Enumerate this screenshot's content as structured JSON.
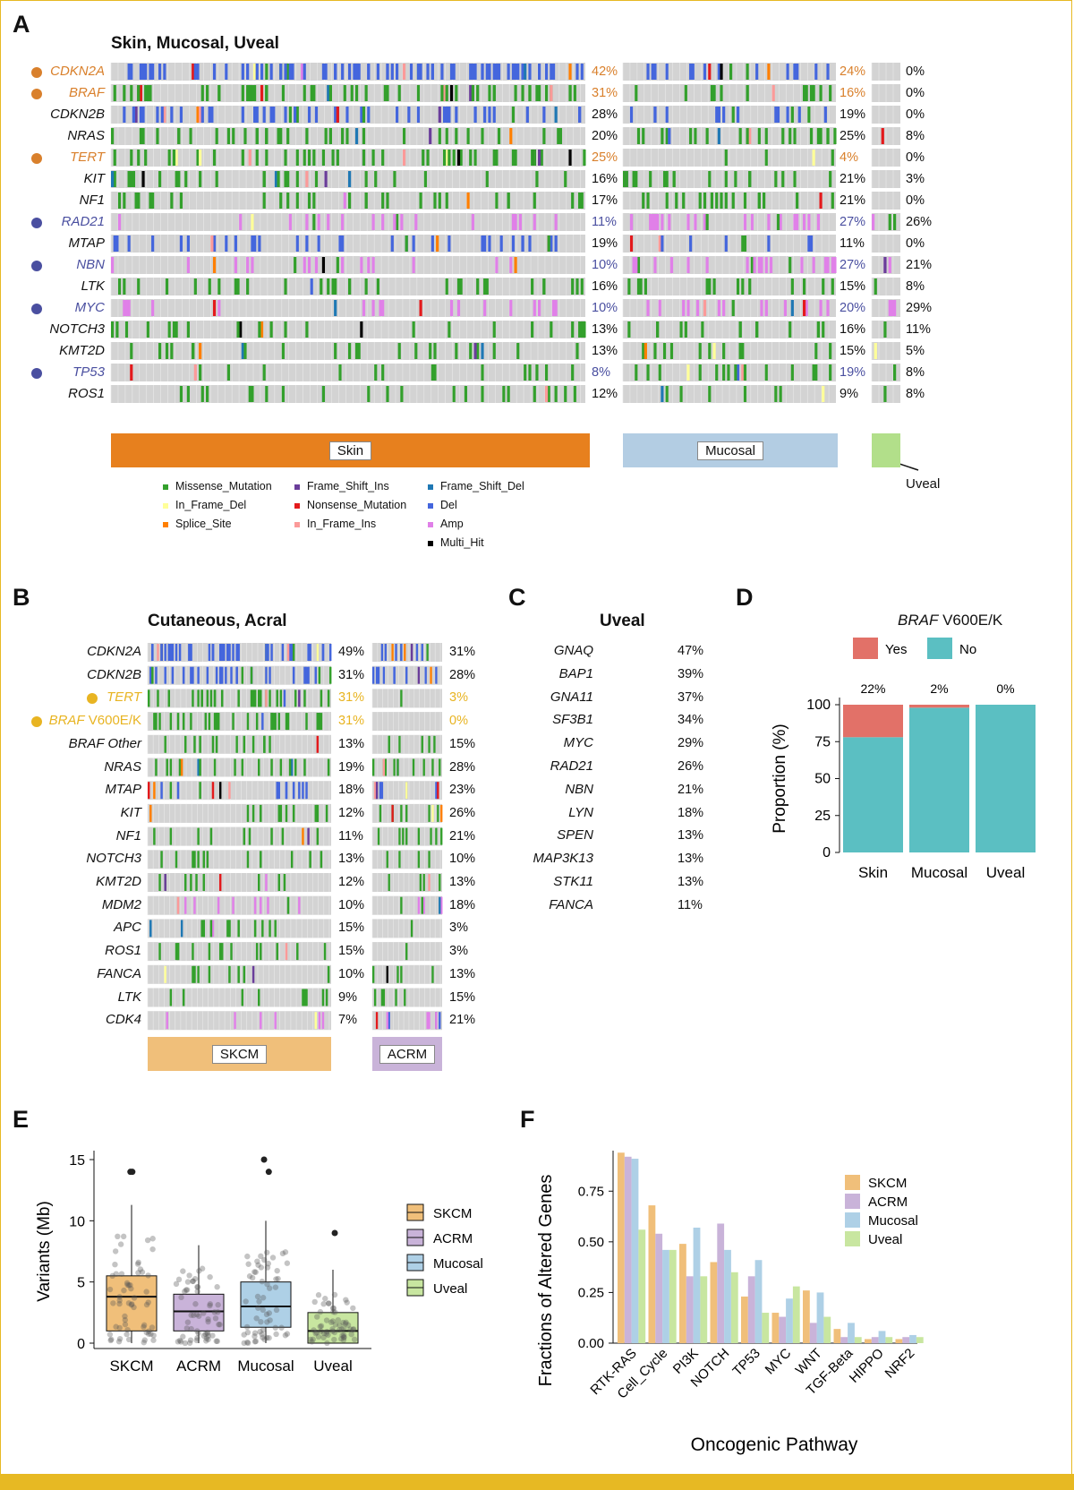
{
  "colors": {
    "frame": "#e7b923",
    "orange": "#d9802c",
    "blue": "#4a4fa0",
    "gold": "#e8b422",
    "track": "#d3d3d3",
    "missense": "#33a02c",
    "in_frame_del": "#ffff99",
    "splice_site": "#ff7f00",
    "frame_shift_ins": "#6a3d9a",
    "nonsense": "#e31a1c",
    "in_frame_ins": "#fb9a99",
    "frame_shift_del": "#1f78b4",
    "del": "#4466dd",
    "amp": "#e080e8",
    "multi_hit": "#000000",
    "skin": "#e7801e",
    "mucosal": "#b3cde3",
    "uveal": "#b2df8a",
    "skcm": "#f0bf7a",
    "acrm": "#c9b3d9",
    "mucosal_box": "#aed0e6",
    "uveal_box": "#c8e6a0",
    "yes": "#e27168",
    "no": "#5bbfc2"
  },
  "panelA": {
    "letter": "A",
    "title": "Skin, Mucosal, Uveal",
    "genes": [
      {
        "name": "CDKN2A",
        "dot": "orange",
        "skin": "42%",
        "mucosal": "24%",
        "uveal": "0%"
      },
      {
        "name": "BRAF",
        "dot": "orange",
        "skin": "31%",
        "mucosal": "16%",
        "uveal": "0%"
      },
      {
        "name": "CDKN2B",
        "dot": "",
        "skin": "28%",
        "mucosal": "19%",
        "uveal": "0%"
      },
      {
        "name": "NRAS",
        "dot": "",
        "skin": "20%",
        "mucosal": "25%",
        "uveal": "8%"
      },
      {
        "name": "TERT",
        "dot": "orange",
        "skin": "25%",
        "mucosal": "4%",
        "uveal": "0%"
      },
      {
        "name": "KIT",
        "dot": "",
        "skin": "16%",
        "mucosal": "21%",
        "uveal": "3%"
      },
      {
        "name": "NF1",
        "dot": "",
        "skin": "17%",
        "mucosal": "21%",
        "uveal": "0%"
      },
      {
        "name": "RAD21",
        "dot": "blue",
        "skin": "11%",
        "mucosal": "27%",
        "uveal": "26%"
      },
      {
        "name": "MTAP",
        "dot": "",
        "skin": "19%",
        "mucosal": "11%",
        "uveal": "0%"
      },
      {
        "name": "NBN",
        "dot": "blue",
        "skin": "10%",
        "mucosal": "27%",
        "uveal": "21%"
      },
      {
        "name": "LTK",
        "dot": "",
        "skin": "16%",
        "mucosal": "15%",
        "uveal": "8%"
      },
      {
        "name": "MYC",
        "dot": "blue",
        "skin": "10%",
        "mucosal": "20%",
        "uveal": "29%"
      },
      {
        "name": "NOTCH3",
        "dot": "",
        "skin": "13%",
        "mucosal": "16%",
        "uveal": "11%"
      },
      {
        "name": "KMT2D",
        "dot": "",
        "skin": "13%",
        "mucosal": "15%",
        "uveal": "5%"
      },
      {
        "name": "TP53",
        "dot": "blue",
        "skin": "8%",
        "mucosal": "19%",
        "uveal": "8%"
      },
      {
        "name": "ROS1",
        "dot": "",
        "skin": "12%",
        "mucosal": "9%",
        "uveal": "8%"
      }
    ],
    "groups": {
      "skin": "Skin",
      "mucosal": "Mucosal",
      "uveal": "Uveal"
    },
    "legend": [
      {
        "label": "Missense_Mutation",
        "color": "missense"
      },
      {
        "label": "In_Frame_Del",
        "color": "in_frame_del"
      },
      {
        "label": "Splice_Site",
        "color": "splice_site"
      },
      {
        "label": "Frame_Shift_Ins",
        "color": "frame_shift_ins"
      },
      {
        "label": "Nonsense_Mutation",
        "color": "nonsense"
      },
      {
        "label": "In_Frame_Ins",
        "color": "in_frame_ins"
      },
      {
        "label": "Frame_Shift_Del",
        "color": "frame_shift_del"
      },
      {
        "label": "Del",
        "color": "del"
      },
      {
        "label": "Amp",
        "color": "amp"
      },
      {
        "label": "Multi_Hit",
        "color": "multi_hit"
      }
    ]
  },
  "panelB": {
    "letter": "B",
    "title": "Cutaneous, Acral",
    "genes": [
      {
        "name": "CDKN2A",
        "dot": "",
        "skcm": "49%",
        "acrm": "31%"
      },
      {
        "name": "CDKN2B",
        "dot": "",
        "skcm": "31%",
        "acrm": "28%"
      },
      {
        "name": "TERT",
        "dot": "gold",
        "skcm": "31%",
        "acrm": "3%"
      },
      {
        "name": "BRAF",
        "suffix": " V600E/K",
        "dot": "gold",
        "skcm": "31%",
        "acrm": "0%"
      },
      {
        "name": "BRAF Other",
        "dot": "",
        "skcm": "13%",
        "acrm": "15%"
      },
      {
        "name": "NRAS",
        "dot": "",
        "skcm": "19%",
        "acrm": "28%"
      },
      {
        "name": "MTAP",
        "dot": "",
        "skcm": "18%",
        "acrm": "23%"
      },
      {
        "name": "KIT",
        "dot": "",
        "skcm": "12%",
        "acrm": "26%"
      },
      {
        "name": "NF1",
        "dot": "",
        "skcm": "11%",
        "acrm": "21%"
      },
      {
        "name": "NOTCH3",
        "dot": "",
        "skcm": "13%",
        "acrm": "10%"
      },
      {
        "name": "KMT2D",
        "dot": "",
        "skcm": "12%",
        "acrm": "13%"
      },
      {
        "name": "MDM2",
        "dot": "",
        "skcm": "10%",
        "acrm": "18%"
      },
      {
        "name": "APC",
        "dot": "",
        "skcm": "15%",
        "acrm": "3%"
      },
      {
        "name": "ROS1",
        "dot": "",
        "skcm": "15%",
        "acrm": "3%"
      },
      {
        "name": "FANCA",
        "dot": "",
        "skcm": "10%",
        "acrm": "13%"
      },
      {
        "name": "LTK",
        "dot": "",
        "skcm": "9%",
        "acrm": "15%"
      },
      {
        "name": "CDK4",
        "dot": "",
        "skcm": "7%",
        "acrm": "21%"
      }
    ],
    "groups": {
      "skcm": "SKCM",
      "acrm": "ACRM"
    }
  },
  "panelC": {
    "letter": "C",
    "title": "Uveal",
    "genes": [
      {
        "name": "GNAQ",
        "pct": "47%"
      },
      {
        "name": "BAP1",
        "pct": "39%"
      },
      {
        "name": "GNA11",
        "pct": "37%"
      },
      {
        "name": "SF3B1",
        "pct": "34%"
      },
      {
        "name": "MYC",
        "pct": "29%"
      },
      {
        "name": "RAD21",
        "pct": "26%"
      },
      {
        "name": "NBN",
        "pct": "21%"
      },
      {
        "name": "LYN",
        "pct": "18%"
      },
      {
        "name": "SPEN",
        "pct": "13%"
      },
      {
        "name": "MAP3K13",
        "pct": "13%"
      },
      {
        "name": "STK11",
        "pct": "13%"
      },
      {
        "name": "FANCA",
        "pct": "11%"
      }
    ]
  },
  "chart_data": [
    {
      "panel": "D",
      "type": "bar",
      "stacked": true,
      "title_italic": "BRAF",
      "title_rest": " V600E/K",
      "ylabel": "Proportion (%)",
      "categories": [
        "Skin",
        "Mucosal",
        "Uveal"
      ],
      "ylim": [
        0,
        100
      ],
      "yticks": [
        0,
        25,
        50,
        75,
        100
      ],
      "series": [
        {
          "name": "Yes",
          "values": [
            22,
            2,
            0
          ],
          "color": "yes"
        },
        {
          "name": "No",
          "values": [
            78,
            98,
            100
          ],
          "color": "no"
        }
      ],
      "top_labels": [
        "22%",
        "2%",
        "0%"
      ],
      "legend_position": "top"
    },
    {
      "panel": "E",
      "type": "box",
      "ylabel": "Variants (Mb)",
      "categories": [
        "SKCM",
        "ACRM",
        "Mucosal",
        "Uveal"
      ],
      "ylim": [
        0,
        15
      ],
      "yticks": [
        0,
        5,
        10,
        15
      ],
      "boxes": [
        {
          "name": "SKCM",
          "q1": 1.0,
          "median": 3.8,
          "q3": 5.5,
          "whisker_low": 0,
          "whisker_high": 11.3,
          "outliers": [
            14,
            14
          ],
          "color": "skcm"
        },
        {
          "name": "ACRM",
          "q1": 1.0,
          "median": 2.6,
          "q3": 4.0,
          "whisker_low": 0,
          "whisker_high": 8.0,
          "outliers": [],
          "color": "acrm"
        },
        {
          "name": "Mucosal",
          "q1": 1.3,
          "median": 3.0,
          "q3": 5.0,
          "whisker_low": 0,
          "whisker_high": 10.0,
          "outliers": [
            14,
            15
          ],
          "color": "mucosal_box"
        },
        {
          "name": "Uveal",
          "q1": 0.0,
          "median": 1.0,
          "q3": 2.5,
          "whisker_low": 0,
          "whisker_high": 6.0,
          "outliers": [
            9
          ],
          "color": "uveal_box"
        }
      ],
      "legend_position": "right"
    },
    {
      "panel": "F",
      "type": "bar",
      "xlabel": "Oncogenic Pathway",
      "ylabel": "Fractions of Altered Genes",
      "categories": [
        "RTK-RAS",
        "Cell_Cycle",
        "PI3K",
        "NOTCH",
        "TP53",
        "MYC",
        "WNT",
        "TGF-Beta",
        "HIPPO",
        "NRF2"
      ],
      "ylim": [
        0,
        0.95
      ],
      "yticks": [
        0.0,
        0.25,
        0.5,
        0.75
      ],
      "series": [
        {
          "name": "SKCM",
          "values": [
            0.94,
            0.68,
            0.49,
            0.4,
            0.23,
            0.15,
            0.26,
            0.07,
            0.02,
            0.02
          ],
          "color": "skcm"
        },
        {
          "name": "ACRM",
          "values": [
            0.92,
            0.54,
            0.33,
            0.59,
            0.33,
            0.13,
            0.1,
            0.03,
            0.03,
            0.03
          ],
          "color": "acrm"
        },
        {
          "name": "Mucosal",
          "values": [
            0.91,
            0.46,
            0.57,
            0.46,
            0.41,
            0.22,
            0.25,
            0.1,
            0.06,
            0.04
          ],
          "color": "mucosal_box"
        },
        {
          "name": "Uveal",
          "values": [
            0.56,
            0.46,
            0.33,
            0.35,
            0.15,
            0.28,
            0.13,
            0.03,
            0.03,
            0.03
          ],
          "color": "uveal_box"
        }
      ],
      "legend_position": "top-right"
    }
  ]
}
